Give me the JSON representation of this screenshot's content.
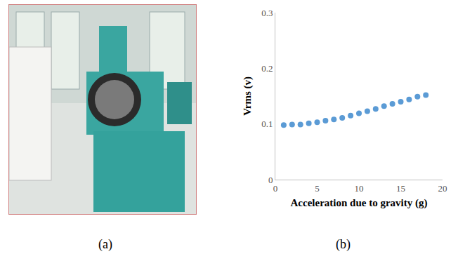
{
  "panel_labels": [
    "(a)",
    "(b)"
  ],
  "chart_data": {
    "type": "scatter",
    "x_label": "Acceleration due to gravity (g)",
    "y_label": "Vrms (v)",
    "x": [
      1,
      2,
      3,
      4,
      5,
      6,
      7,
      8,
      9,
      10,
      11,
      12,
      13,
      14,
      15,
      16,
      17,
      18
    ],
    "values": [
      0.098,
      0.099,
      0.099,
      0.101,
      0.103,
      0.106,
      0.108,
      0.111,
      0.115,
      0.119,
      0.123,
      0.127,
      0.132,
      0.136,
      0.14,
      0.144,
      0.149,
      0.152
    ],
    "color": "#5b9bd5",
    "marker": "circle",
    "xlim": [
      0,
      20
    ],
    "xticks": [
      0,
      5,
      10,
      15,
      20
    ],
    "ylim": [
      0,
      0.3
    ],
    "yticks": [
      0,
      0.1,
      0.2,
      0.3
    ],
    "grid": false
  }
}
